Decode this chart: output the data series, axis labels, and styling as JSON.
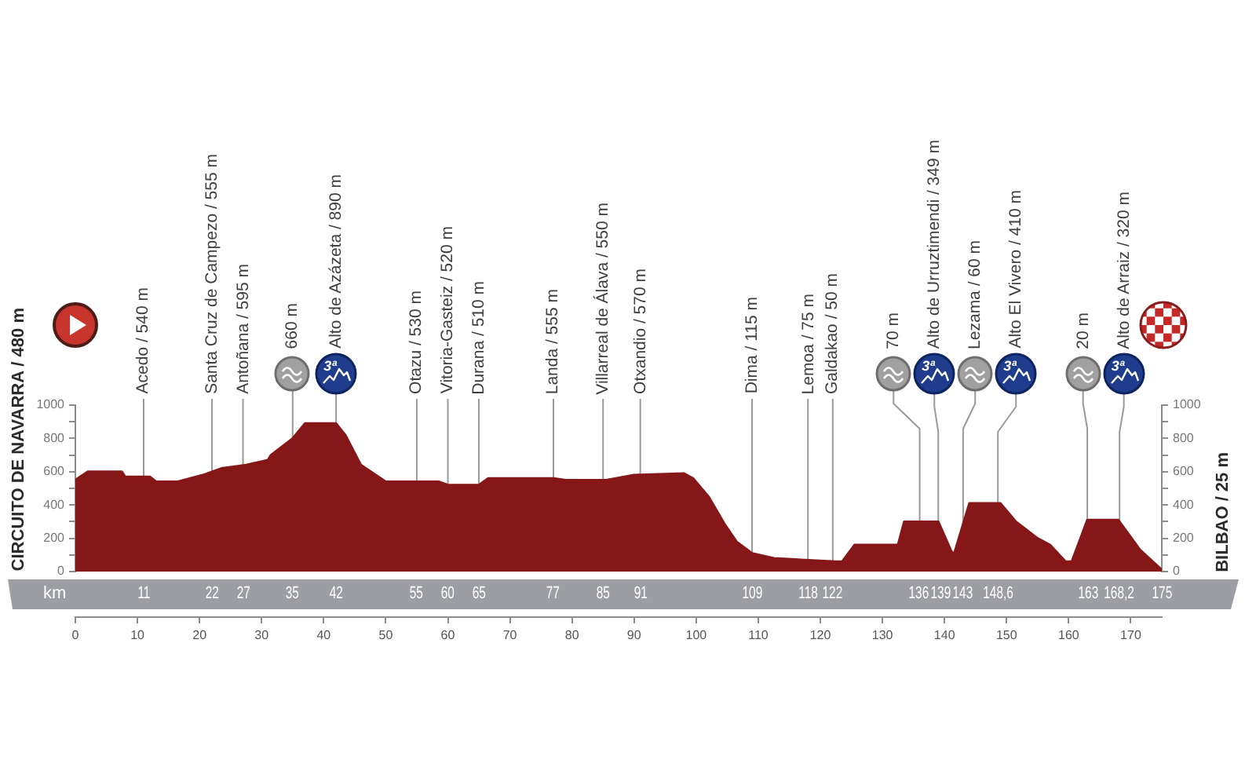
{
  "chart_data": {
    "type": "area",
    "color": "#861719",
    "x": [
      0,
      2,
      7.5,
      8,
      12,
      13,
      16.5,
      20.5,
      23.5,
      27.5,
      31,
      31.5,
      35,
      37,
      42,
      43.5,
      46,
      50,
      58.5,
      60,
      65,
      66.5,
      77,
      79,
      85.5,
      90,
      98,
      99.5,
      102,
      104.5,
      106.5,
      109,
      112.5,
      117.5,
      122.5,
      123.5,
      125.5,
      132.5,
      133.5,
      139,
      141,
      141.5,
      144,
      149,
      151.5,
      155,
      157,
      159.5,
      160.5,
      163,
      168,
      171.5,
      175
    ],
    "values": [
      550,
      600,
      600,
      570,
      570,
      540,
      540,
      580,
      620,
      640,
      670,
      700,
      800,
      890,
      890,
      820,
      640,
      540,
      540,
      520,
      520,
      560,
      560,
      550,
      550,
      580,
      590,
      560,
      450,
      290,
      180,
      110,
      80,
      70,
      60,
      60,
      160,
      160,
      300,
      300,
      130,
      100,
      410,
      410,
      300,
      200,
      160,
      60,
      60,
      310,
      310,
      130,
      10
    ],
    "xlim": [
      0,
      175
    ],
    "xticks": [
      0,
      10,
      20,
      30,
      40,
      50,
      60,
      70,
      80,
      90,
      100,
      110,
      120,
      130,
      140,
      150,
      160,
      170
    ],
    "x2lim": [
      0,
      175
    ],
    "x2label": "km",
    "x2ticks": [
      11,
      22,
      27,
      35,
      42,
      55,
      60,
      65,
      77,
      85,
      91,
      109,
      118,
      122,
      136,
      139,
      143,
      {
        "value": 148.6,
        "label": "148,6"
      },
      163,
      {
        "value": 168.2,
        "label": "168,2"
      },
      175
    ],
    "ylim": [
      0,
      1000
    ],
    "yticks": [
      0,
      {
        "value": 100,
        "label": null
      },
      200,
      {
        "value": 300,
        "label": null
      },
      400,
      {
        "value": 500,
        "label": null
      },
      600,
      {
        "value": 700,
        "label": null
      },
      800,
      {
        "value": 900,
        "label": null
      },
      1000
    ],
    "y2lim": [
      0,
      1000
    ],
    "y2ticks": [
      0,
      {
        "value": 100,
        "label": null
      },
      200,
      {
        "value": 300,
        "label": null
      },
      400,
      {
        "value": 500,
        "label": null
      },
      600,
      {
        "value": 700,
        "label": null
      },
      800,
      {
        "value": 900,
        "label": null
      },
      1000
    ],
    "ref_lines": [
      {
        "axis": "x",
        "value": 11,
        "label": "Acedo / 540 m"
      },
      {
        "axis": "x",
        "value": 22,
        "label": "Santa Cruz de Campezo / 555 m"
      },
      {
        "axis": "x",
        "value": 27,
        "label": "Antoñana / 595 m"
      },
      {
        "axis": "x",
        "value": 35,
        "label": "660 m"
      },
      {
        "axis": "x",
        "value": 42,
        "label": "Alto de Azázeta / 890 m"
      },
      {
        "axis": "x",
        "value": 55,
        "label": "Otazu / 530 m"
      },
      {
        "axis": "x",
        "value": 60,
        "label": "Vitoria-Gasteiz / 520 m"
      },
      {
        "axis": "x",
        "value": 65,
        "label": "Durana / 510 m"
      },
      {
        "axis": "x",
        "value": 77,
        "label": "Landa / 555 m"
      },
      {
        "axis": "x",
        "value": 85,
        "label": "Villarreal de Álava / 550 m"
      },
      {
        "axis": "x",
        "value": 91,
        "label": "Otxandio / 570 m"
      },
      {
        "axis": "x",
        "value": 109,
        "label": "Dima / 115 m"
      },
      {
        "axis": "x",
        "value": 118,
        "label": "Lemoa / 75 m"
      },
      {
        "axis": "x",
        "value": 122,
        "label": "Galdakao / 50 m"
      },
      {
        "axis": "x",
        "value": 136,
        "label": "70 m"
      },
      {
        "axis": "x",
        "value": 139,
        "label": "Alto de Urruztimendi / 349 m"
      },
      {
        "axis": "x",
        "value": 143,
        "label": "Lezama / 60 m"
      },
      {
        "axis": "x",
        "value": 148.6,
        "label": "Alto El Vivero / 410 m"
      },
      {
        "axis": "x",
        "value": 163,
        "label": "20 m"
      },
      {
        "axis": "x",
        "value": 168.2,
        "label": "Alto de Arraiz / 320 m"
      }
    ],
    "annotations": [
      "CIRCUITO DE NAVARRA / 480 m",
      "BILBAO / 25 m",
      "3ª",
      "3ª",
      "3ª",
      "3ª"
    ]
  }
}
